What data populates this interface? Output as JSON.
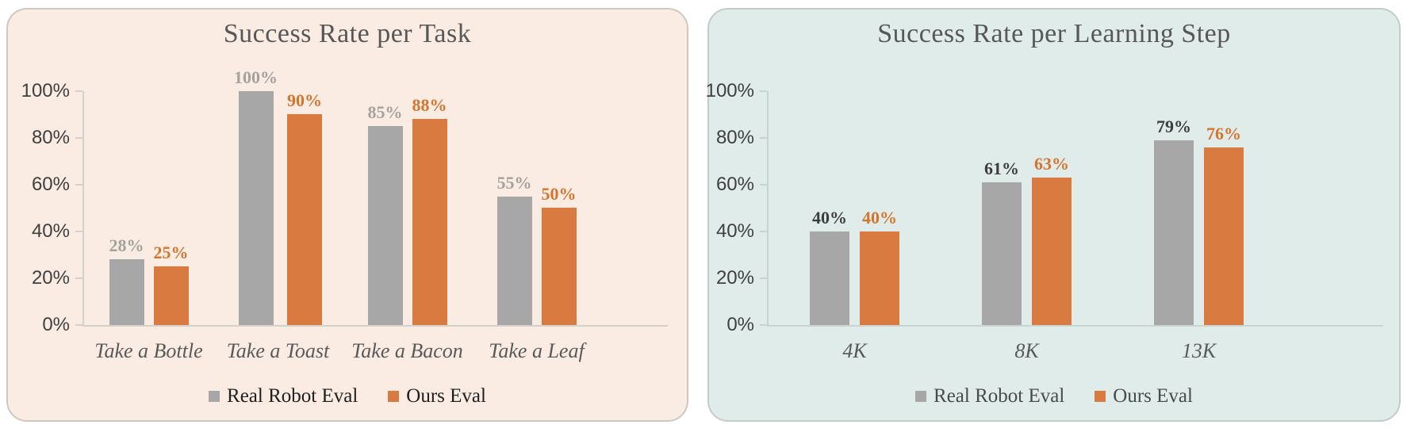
{
  "figure": {
    "background": "#ffffff"
  },
  "chart_data": [
    {
      "type": "bar",
      "title": "Success Rate per Task",
      "categories": [
        "Take a Bottle",
        "Take a Toast",
        "Take a Bacon",
        "Take a Leaf"
      ],
      "series": [
        {
          "name": "Real Robot Eval",
          "values": [
            28,
            100,
            85,
            55
          ],
          "color": "#a7a7a7",
          "label_color": "#a5a19d"
        },
        {
          "name": "Ours Eval",
          "values": [
            25,
            90,
            88,
            50
          ],
          "color": "#d97b40",
          "label_color": "#d5742e"
        }
      ],
      "value_suffix": "%",
      "ylim": [
        0,
        100
      ],
      "y_ticks": [
        "100%",
        "80%",
        "60%",
        "40%",
        "20%",
        "0%"
      ],
      "grid": false,
      "legend_position": "bottom",
      "legend_text_color": "#1f1f1f",
      "panel_bg": "#faece2",
      "panel_border": "#cdc8c2",
      "title_color": "#575757",
      "axis_color": "#d4d0ca",
      "tick_label_color": "#3f3f3f",
      "category_label_color": "#595959"
    },
    {
      "type": "bar",
      "title": "Success Rate per Learning Step",
      "categories": [
        "4K",
        "8K",
        "13K"
      ],
      "series": [
        {
          "name": "Real Robot Eval",
          "values": [
            40,
            61,
            79
          ],
          "color": "#a7a7a7",
          "label_color": "#3d3d3d"
        },
        {
          "name": "Ours Eval",
          "values": [
            40,
            63,
            76
          ],
          "color": "#d97b40",
          "label_color": "#d5742e"
        }
      ],
      "value_suffix": "%",
      "ylim": [
        0,
        100
      ],
      "y_ticks": [
        "100%",
        "80%",
        "60%",
        "40%",
        "20%",
        "0%"
      ],
      "grid": false,
      "legend_position": "bottom",
      "legend_text_color": "#4a4a4a",
      "panel_bg": "#dfece9",
      "panel_border": "#c2ccc9",
      "title_color": "#575757",
      "axis_color": "#c9d4d0",
      "tick_label_color": "#3f3f3f",
      "category_label_color": "#595959"
    }
  ]
}
